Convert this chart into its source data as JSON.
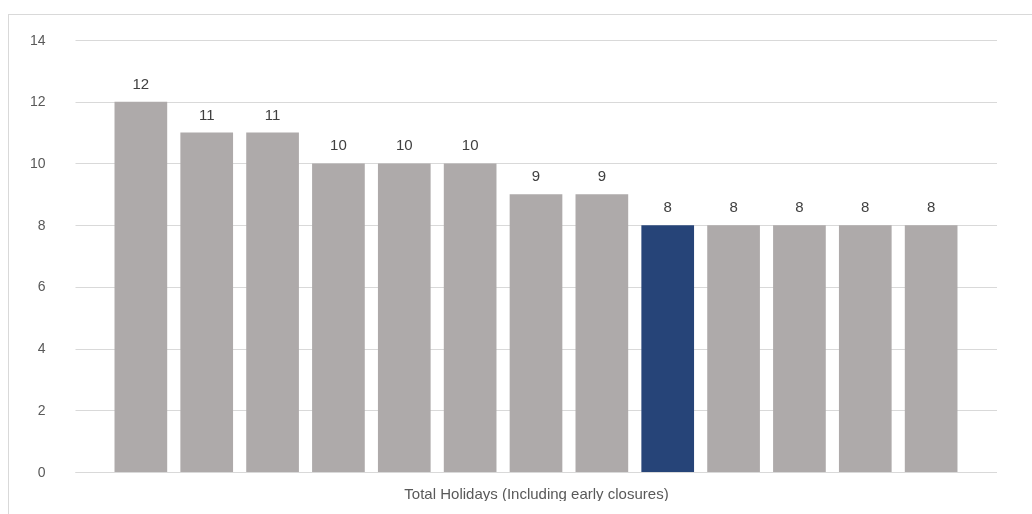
{
  "chart_data": {
    "type": "bar",
    "xlabel": "Total Holidays (Including early closures)",
    "categories": [
      null,
      null,
      null,
      null,
      null,
      null,
      null,
      null,
      null,
      null,
      null,
      null,
      null
    ],
    "values": [
      12,
      11,
      11,
      10,
      10,
      10,
      9,
      9,
      8,
      8,
      8,
      8,
      8
    ],
    "colors": [
      "#aeaaaa",
      "#aeaaaa",
      "#aeaaaa",
      "#aeaaaa",
      "#aeaaaa",
      "#aeaaaa",
      "#aeaaaa",
      "#aeaaaa",
      "#264478",
      "#aeaaaa",
      "#aeaaaa",
      "#aeaaaa",
      "#aeaaaa"
    ],
    "ylim": [
      0,
      14
    ],
    "yticks": [
      0,
      2,
      4,
      6,
      8,
      10,
      12,
      14
    ],
    "grid": "y",
    "data_labels": true
  }
}
